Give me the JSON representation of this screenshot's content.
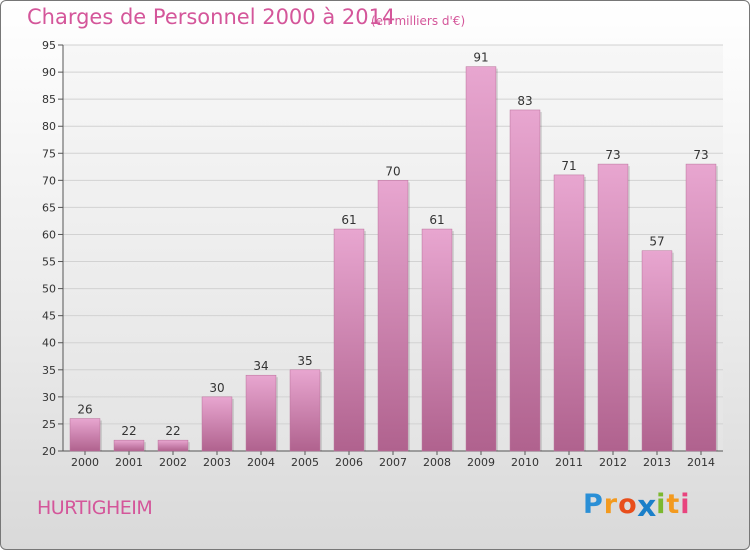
{
  "title": "Charges de Personnel 2000 à 2014",
  "subtitle": "(en milliers d'€)",
  "commune": "HURTIGHEIM",
  "logo": {
    "letters": [
      "P",
      "r",
      "o",
      "x",
      "i",
      "t",
      "i"
    ],
    "colors": [
      "#2a8fd6",
      "#f39a1e",
      "#e84e1b",
      "#1a7fc9",
      "#7cb82f",
      "#f39a1e",
      "#e8447e"
    ]
  },
  "chart_data": {
    "type": "bar",
    "title": "Charges de Personnel 2000 à 2014",
    "subtitle": "(en milliers d'€)",
    "xlabel": "",
    "ylabel": "",
    "categories": [
      "2000",
      "2001",
      "2002",
      "2003",
      "2004",
      "2005",
      "2006",
      "2007",
      "2008",
      "2009",
      "2010",
      "2011",
      "2012",
      "2013",
      "2014"
    ],
    "values": [
      26,
      22,
      22,
      30,
      34,
      35,
      61,
      70,
      61,
      91,
      83,
      71,
      73,
      57,
      73
    ],
    "ylim": [
      20,
      95
    ],
    "yticks": [
      20,
      25,
      30,
      35,
      40,
      45,
      50,
      55,
      60,
      65,
      70,
      75,
      80,
      85,
      90,
      95
    ],
    "grid": true,
    "bar_color": "#d98ab8"
  }
}
